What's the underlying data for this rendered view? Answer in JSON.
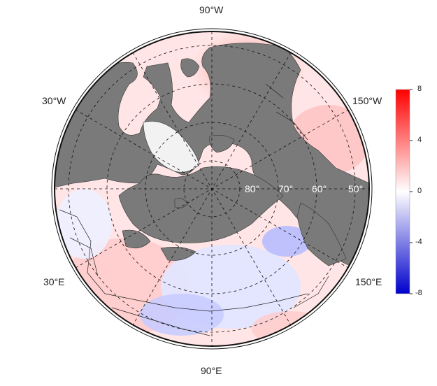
{
  "map": {
    "projection": "north-polar-stereographic",
    "longitude_labels": [
      "90°W",
      "30°W",
      "150°W",
      "30°E",
      "150°E",
      "90°E"
    ],
    "latitude_labels": [
      "80°",
      "70°",
      "60°",
      "50°"
    ],
    "colors": {
      "land": "#7a7a7a",
      "background": "#ffffff",
      "positive_max": "#ff0000",
      "neutral": "#ffffff",
      "negative_max": "#0000cc"
    }
  },
  "colorbar": {
    "ticks": [
      "8",
      "4",
      "0",
      "-4",
      "-8"
    ],
    "range": [
      -8,
      8
    ]
  }
}
